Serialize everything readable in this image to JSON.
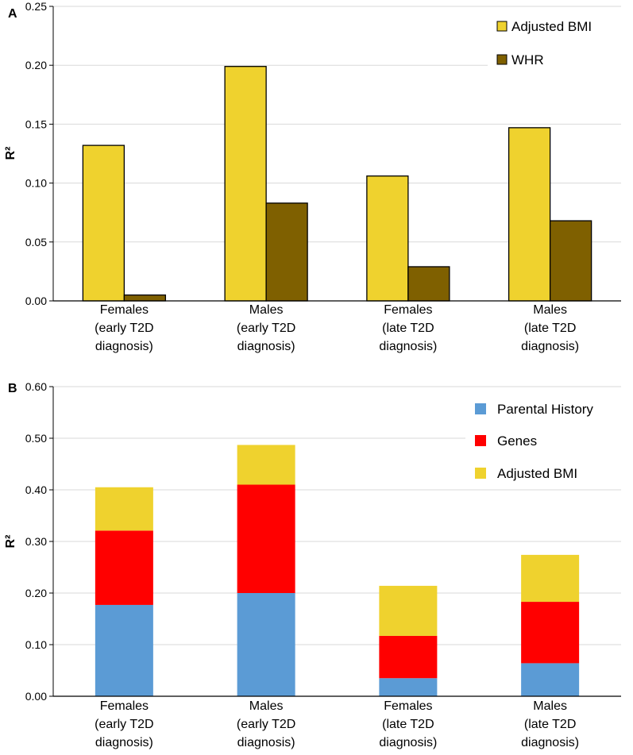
{
  "chart_data": [
    {
      "panel": "A",
      "type": "bar",
      "ylabel": "R²",
      "ylim": [
        0,
        0.25
      ],
      "yticks": [
        "0.00",
        "0.05",
        "0.10",
        "0.15",
        "0.20",
        "0.25"
      ],
      "categories": [
        [
          "Females",
          "(early T2D",
          "diagnosis)"
        ],
        [
          "Males",
          "(early T2D",
          "diagnosis)"
        ],
        [
          "Females",
          "(late T2D",
          "diagnosis)"
        ],
        [
          "Males",
          "(late T2D",
          "diagnosis)"
        ]
      ],
      "series": [
        {
          "name": "Adjusted BMI",
          "color": "#EFD22E",
          "values": [
            0.132,
            0.199,
            0.106,
            0.147
          ]
        },
        {
          "name": "WHR",
          "color": "#7F6000",
          "values": [
            0.005,
            0.083,
            0.029,
            0.068
          ]
        }
      ],
      "grid": true,
      "legend": "top-right"
    },
    {
      "panel": "B",
      "type": "stacked-bar",
      "ylabel": "R²",
      "ylim": [
        0,
        0.6
      ],
      "yticks": [
        "0.00",
        "0.10",
        "0.20",
        "0.30",
        "0.40",
        "0.50",
        "0.60"
      ],
      "categories": [
        [
          "Females",
          "(early T2D",
          "diagnosis)"
        ],
        [
          "Males",
          "(early T2D",
          "diagnosis)"
        ],
        [
          "Females",
          "(late T2D",
          "diagnosis)"
        ],
        [
          "Males",
          "(late T2D",
          "diagnosis)"
        ]
      ],
      "series": [
        {
          "name": "Parental History",
          "color": "#5B9BD5",
          "values": [
            0.177,
            0.2,
            0.035,
            0.064
          ]
        },
        {
          "name": "Genes",
          "color": "#FF0000",
          "values": [
            0.144,
            0.21,
            0.082,
            0.119
          ]
        },
        {
          "name": "Adjusted BMI",
          "color": "#EFD22E",
          "values": [
            0.084,
            0.077,
            0.097,
            0.091
          ]
        }
      ],
      "grid": true,
      "legend": "top-right"
    }
  ]
}
